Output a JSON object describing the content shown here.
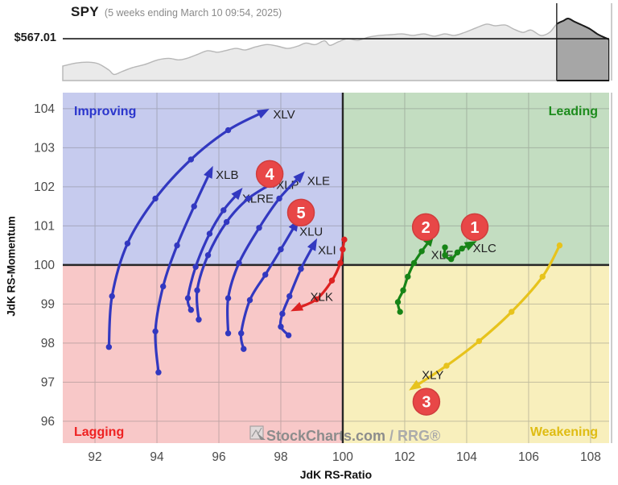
{
  "chart_data": [
    {
      "type": "area",
      "name": "spy-price-sparkline",
      "title": "SPY",
      "subtitle": "(5 weeks ending March 10 09:54, 2025)",
      "price_label": "$567.01",
      "reference_level": 0.547,
      "highlight_start": 0.904,
      "colors": {
        "area": "#eaeaea",
        "line": "#b7b7b7",
        "highlight_area": "#a6a6a6",
        "highlight_line": "#1a1a1a",
        "reference_line": "#1a1a1a",
        "window_edge": "#3a3a3a",
        "right_border": "#cccccc"
      },
      "points": [
        [
          0.0,
          0.19
        ],
        [
          0.025,
          0.23
        ],
        [
          0.047,
          0.24
        ],
        [
          0.065,
          0.22
        ],
        [
          0.084,
          0.14
        ],
        [
          0.094,
          0.08
        ],
        [
          0.109,
          0.12
        ],
        [
          0.128,
          0.17
        ],
        [
          0.15,
          0.21
        ],
        [
          0.174,
          0.27
        ],
        [
          0.194,
          0.29
        ],
        [
          0.212,
          0.27
        ],
        [
          0.227,
          0.29
        ],
        [
          0.246,
          0.34
        ],
        [
          0.265,
          0.39
        ],
        [
          0.283,
          0.37
        ],
        [
          0.297,
          0.39
        ],
        [
          0.317,
          0.42
        ],
        [
          0.334,
          0.4
        ],
        [
          0.353,
          0.44
        ],
        [
          0.374,
          0.47
        ],
        [
          0.393,
          0.45
        ],
        [
          0.412,
          0.42
        ],
        [
          0.43,
          0.45
        ],
        [
          0.445,
          0.49
        ],
        [
          0.462,
          0.47
        ],
        [
          0.479,
          0.52
        ],
        [
          0.489,
          0.46
        ],
        [
          0.504,
          0.505
        ],
        [
          0.521,
          0.547
        ],
        [
          0.54,
          0.526
        ],
        [
          0.56,
          0.568
        ],
        [
          0.58,
          0.59
        ],
        [
          0.602,
          0.6
        ],
        [
          0.621,
          0.61
        ],
        [
          0.641,
          0.59
        ],
        [
          0.661,
          0.61
        ],
        [
          0.68,
          0.58
        ],
        [
          0.699,
          0.61
        ],
        [
          0.717,
          0.59
        ],
        [
          0.736,
          0.63
        ],
        [
          0.757,
          0.69
        ],
        [
          0.776,
          0.737
        ],
        [
          0.791,
          0.716
        ],
        [
          0.81,
          0.726
        ],
        [
          0.825,
          0.674
        ],
        [
          0.842,
          0.63
        ],
        [
          0.857,
          0.66
        ],
        [
          0.875,
          0.59
        ],
        [
          0.891,
          0.63
        ],
        [
          0.904,
          0.737
        ],
        [
          0.916,
          0.78
        ],
        [
          0.925,
          0.81
        ],
        [
          0.937,
          0.768
        ],
        [
          0.95,
          0.726
        ],
        [
          0.965,
          0.674
        ],
        [
          0.978,
          0.61
        ],
        [
          0.99,
          0.568
        ],
        [
          1.0,
          0.537
        ]
      ]
    },
    {
      "type": "scatter",
      "name": "relative-rotation-graph",
      "xlabel": "JdK RS-Ratio",
      "ylabel": "JdK RS-Momentum",
      "xlim": [
        90.96,
        108.6
      ],
      "ylim": [
        95.44,
        104.41
      ],
      "x_ticks": [
        92,
        94,
        96,
        98,
        100,
        102,
        104,
        106,
        108
      ],
      "y_ticks": [
        96,
        97,
        98,
        99,
        100,
        101,
        102,
        103,
        104
      ],
      "grid": true,
      "quadrants": [
        {
          "id": "improving",
          "label": "Improving",
          "fill": "#c6cbee",
          "text_color": "#2a35cc",
          "position": "top-left"
        },
        {
          "id": "leading",
          "label": "Leading",
          "fill": "#c3ddc1",
          "text_color": "#1d8c1d",
          "position": "top-right"
        },
        {
          "id": "lagging",
          "label": "Lagging",
          "fill": "#f8c8c8",
          "text_color": "#ee2222",
          "position": "bottom-left"
        },
        {
          "id": "weakening",
          "label": "Weakening",
          "fill": "#f8efbc",
          "text_color": "#dfbc13",
          "position": "bottom-right"
        }
      ],
      "series": [
        {
          "symbol": "XLV",
          "color": "#3238c0",
          "label_pos": [
            97.75,
            103.75
          ],
          "points": [
            [
              92.45,
              97.9
            ],
            [
              92.55,
              99.2
            ],
            [
              93.05,
              100.55
            ],
            [
              93.95,
              101.7
            ],
            [
              95.1,
              102.7
            ],
            [
              96.3,
              103.45
            ],
            [
              97.4,
              103.9
            ]
          ]
        },
        {
          "symbol": "XLB",
          "color": "#3238c0",
          "label_pos": [
            95.9,
            102.2
          ],
          "points": [
            [
              94.05,
              97.25
            ],
            [
              93.95,
              98.3
            ],
            [
              94.2,
              99.45
            ],
            [
              94.65,
              100.5
            ],
            [
              95.2,
              101.5
            ],
            [
              95.7,
              102.35
            ]
          ]
        },
        {
          "symbol": "XLRE",
          "color": "#3238c0",
          "label_pos": [
            96.75,
            101.6
          ],
          "points": [
            [
              95.1,
              98.85
            ],
            [
              95.0,
              99.15
            ],
            [
              95.25,
              99.95
            ],
            [
              95.7,
              100.8
            ],
            [
              96.15,
              101.4
            ],
            [
              96.6,
              101.82
            ]
          ]
        },
        {
          "symbol": "XLP",
          "color": "#3238c0",
          "label_pos": [
            97.85,
            101.95
          ],
          "points": [
            [
              95.35,
              98.6
            ],
            [
              95.3,
              99.35
            ],
            [
              95.65,
              100.25
            ],
            [
              96.25,
              101.1
            ],
            [
              96.95,
              101.7
            ],
            [
              97.8,
              102.12
            ]
          ]
        },
        {
          "symbol": "XLE",
          "color": "#3238c0",
          "label_pos": [
            98.85,
            102.05
          ],
          "points": [
            [
              96.3,
              98.25
            ],
            [
              96.3,
              99.15
            ],
            [
              96.65,
              100.05
            ],
            [
              97.3,
              100.95
            ],
            [
              97.95,
              101.7
            ],
            [
              98.6,
              102.25
            ]
          ]
        },
        {
          "symbol": "XLU",
          "color": "#3238c0",
          "label_pos": [
            98.6,
            100.75
          ],
          "points": [
            [
              96.8,
              97.85
            ],
            [
              96.72,
              98.25
            ],
            [
              97.0,
              99.1
            ],
            [
              97.5,
              99.75
            ],
            [
              98.0,
              100.4
            ],
            [
              98.45,
              101.0
            ]
          ]
        },
        {
          "symbol": "XLI",
          "color": "#3238c0",
          "label_pos": [
            99.2,
            100.28
          ],
          "points": [
            [
              98.25,
              98.2
            ],
            [
              98.0,
              98.42
            ],
            [
              98.05,
              98.75
            ],
            [
              98.28,
              99.2
            ],
            [
              98.65,
              99.9
            ],
            [
              99.05,
              100.5
            ]
          ]
        },
        {
          "symbol": "XLK",
          "color": "#dd2222",
          "label_pos": [
            98.95,
            99.08
          ],
          "points": [
            [
              100.05,
              100.65
            ],
            [
              100.0,
              100.4
            ],
            [
              99.92,
              100.05
            ],
            [
              99.65,
              99.6
            ],
            [
              99.15,
              99.12
            ],
            [
              98.55,
              98.9
            ]
          ]
        },
        {
          "symbol": "XLF",
          "color": "#178417",
          "label_pos": [
            102.85,
            100.15
          ],
          "points": [
            [
              101.85,
              98.8
            ],
            [
              101.78,
              99.05
            ],
            [
              101.95,
              99.35
            ],
            [
              102.1,
              99.7
            ],
            [
              102.3,
              100.05
            ],
            [
              102.55,
              100.35
            ],
            [
              102.8,
              100.62
            ]
          ]
        },
        {
          "symbol": "XLC",
          "color": "#178417",
          "label_pos": [
            104.2,
            100.33
          ],
          "points": [
            [
              103.3,
              100.45
            ],
            [
              103.3,
              100.25
            ],
            [
              103.5,
              100.15
            ],
            [
              103.7,
              100.32
            ],
            [
              103.85,
              100.42
            ],
            [
              104.1,
              100.52
            ]
          ]
        },
        {
          "symbol": "XLY",
          "color": "#e7c31c",
          "label_pos": [
            102.55,
            97.08
          ],
          "points": [
            [
              107.0,
              100.5
            ],
            [
              106.45,
              99.7
            ],
            [
              105.45,
              98.8
            ],
            [
              104.4,
              98.05
            ],
            [
              103.35,
              97.42
            ],
            [
              102.35,
              96.9
            ]
          ]
        }
      ],
      "annotations": [
        {
          "label": "1",
          "x": 104.26,
          "y": 100.97
        },
        {
          "label": "2",
          "x": 102.68,
          "y": 100.97
        },
        {
          "label": "3",
          "x": 102.7,
          "y": 96.5
        },
        {
          "label": "4",
          "x": 97.64,
          "y": 102.33
        },
        {
          "label": "5",
          "x": 98.65,
          "y": 101.34
        }
      ],
      "annotation_style": {
        "fill": "#e84747",
        "stroke": "#cf3d3d",
        "text": "#ffffff"
      },
      "style": {
        "grid_color": "#707070",
        "axis_cross_color": "#262626",
        "tick_color": "#4a4a4a",
        "sector_label_color": "#222222",
        "right_border": "#cccccc"
      },
      "watermark": {
        "text_main": "StockCharts.com",
        "text_rest": " / RRG®",
        "color_main": "#8c8c8c",
        "color_rest": "#ababab"
      }
    }
  ]
}
